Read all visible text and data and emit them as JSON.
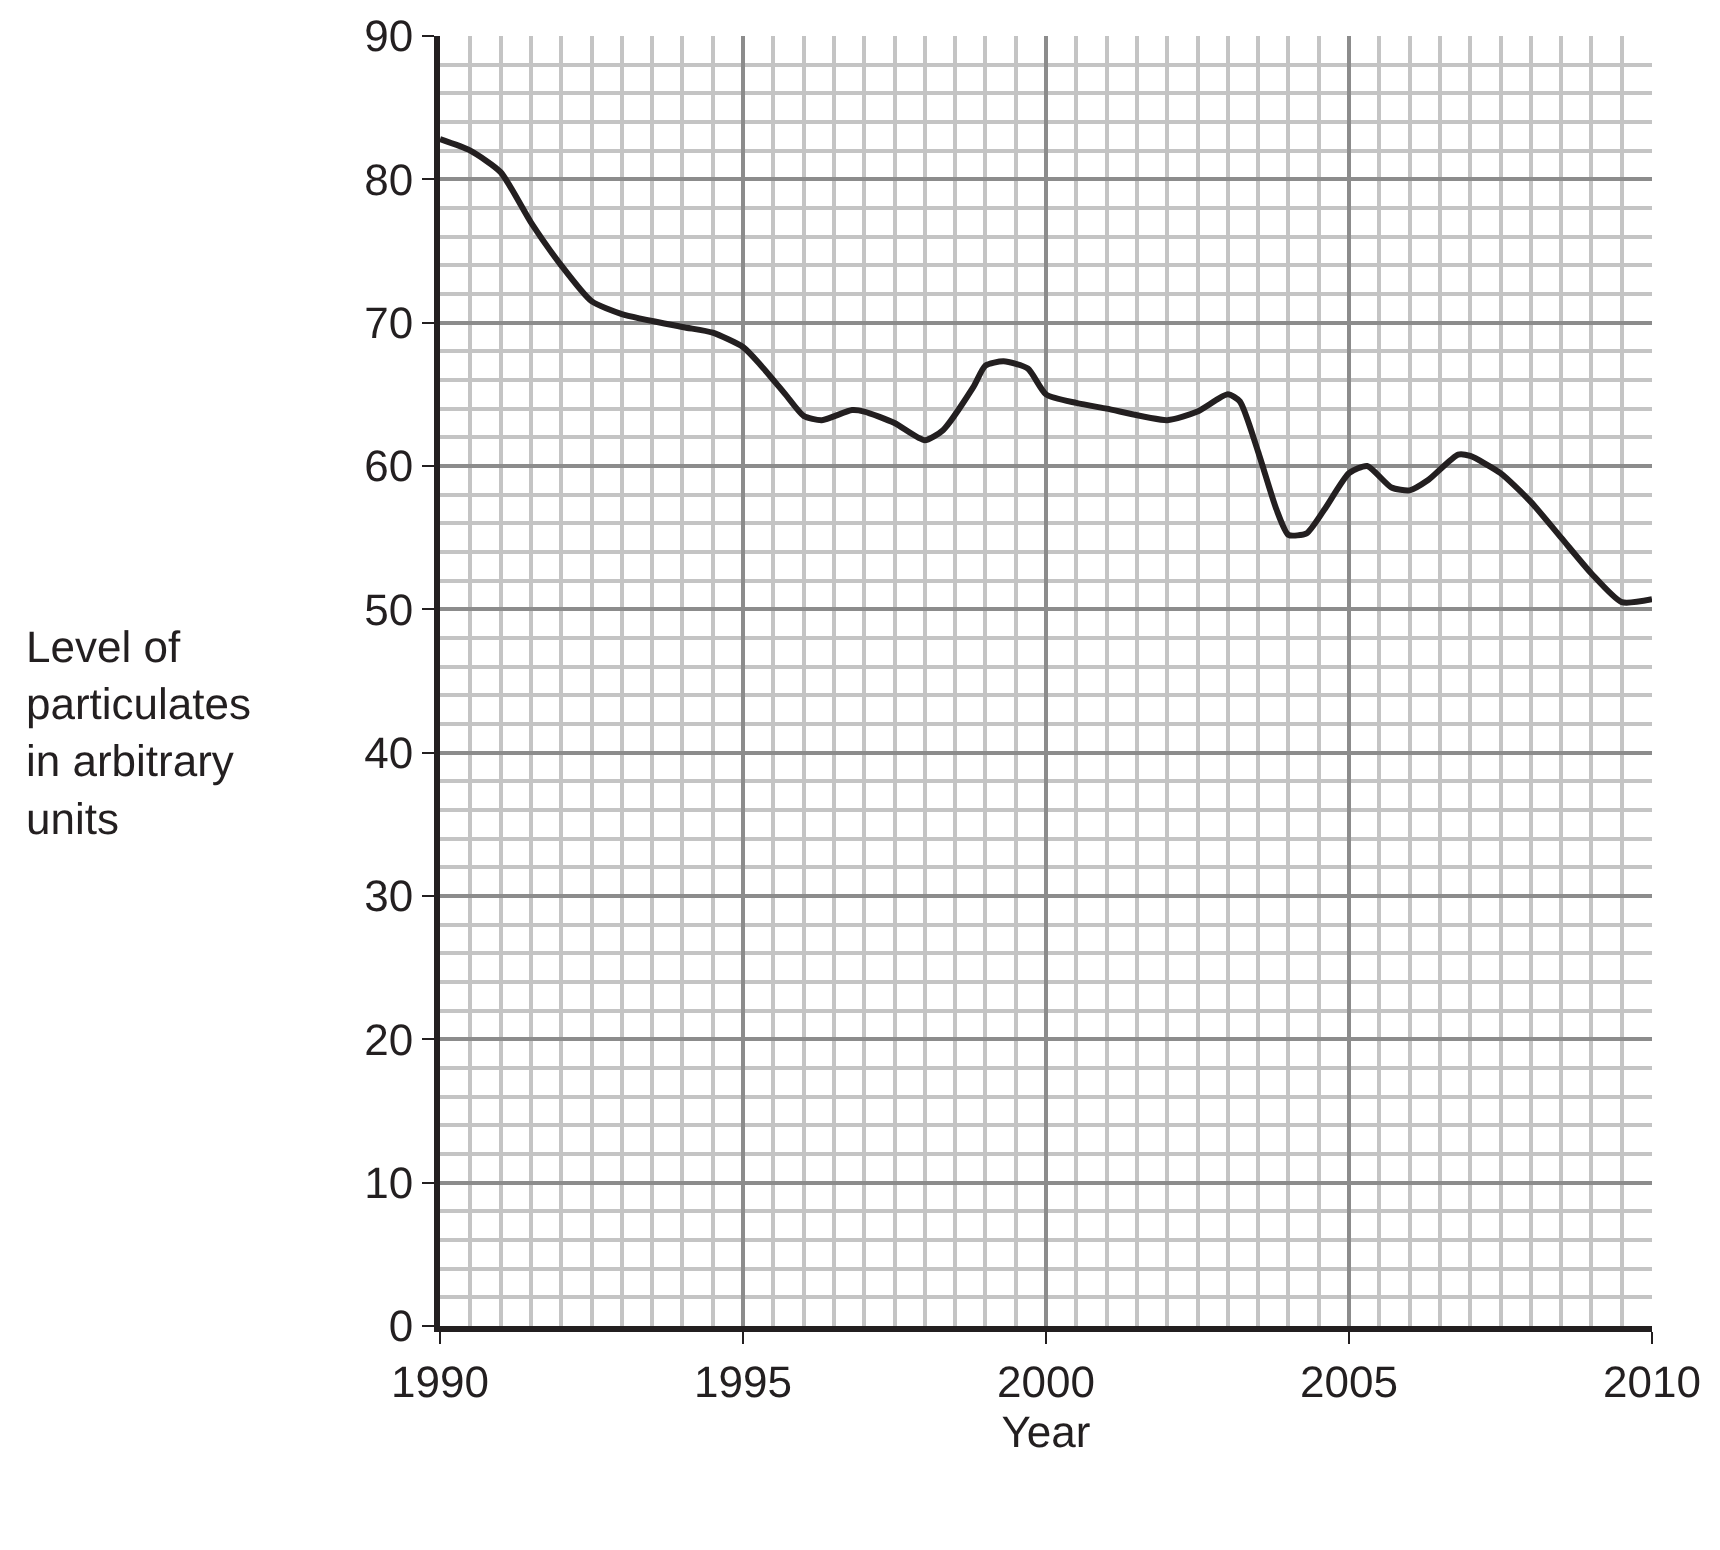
{
  "chart_data": {
    "type": "line",
    "xlabel": "Year",
    "ylabel": "Level of particulates in arbitrary units",
    "x": [
      1990,
      1990.5,
      1991,
      1991.5,
      1992,
      1992.5,
      1993,
      1994,
      1994.5,
      1995,
      1995.3,
      1995.7,
      1996,
      1996.3,
      1996.8,
      1997,
      1997.5,
      1998,
      1998.3,
      1998.8,
      1999,
      1999.3,
      1999.7,
      2000,
      2000.5,
      2001,
      2002,
      2002.5,
      2003,
      2003.2,
      2003.5,
      2003.8,
      2004,
      2004.3,
      2004.6,
      2005,
      2005.3,
      2005.7,
      2006,
      2006.3,
      2006.8,
      2007,
      2007.5,
      2008,
      2008.5,
      2009,
      2009.5,
      2010
    ],
    "series": [
      {
        "color": "#231f20",
        "values": [
          82.8,
          82,
          80.5,
          77,
          74,
          71.5,
          70.6,
          69.7,
          69.3,
          68.3,
          67,
          65,
          63.5,
          63.2,
          63.9,
          63.8,
          63,
          61.8,
          62.5,
          65.5,
          67,
          67.3,
          66.8,
          65,
          64.4,
          64,
          63.2,
          63.8,
          65,
          64.5,
          61,
          57,
          55.2,
          55.3,
          57,
          59.5,
          60,
          58.5,
          58.3,
          59,
          60.8,
          60.7,
          59.5,
          57.5,
          55,
          52.5,
          50.5,
          50.7
        ]
      }
    ],
    "xlim": [
      1990,
      2010
    ],
    "xticks": [
      1990,
      1995,
      2000,
      2005,
      2010
    ],
    "ylim": [
      0,
      90
    ],
    "yticks": [
      0,
      10,
      20,
      30,
      40,
      50,
      60,
      70,
      80,
      90
    ],
    "grid": true,
    "marker": "none",
    "line_style": "solid"
  }
}
